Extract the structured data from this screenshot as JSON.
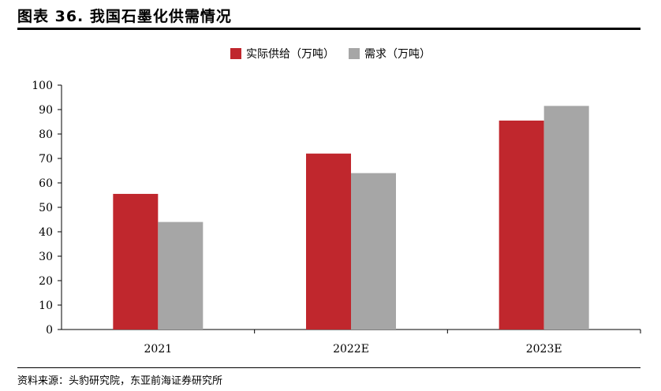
{
  "header": {
    "title": "图表 36. 我国石墨化供需情况"
  },
  "footer": {
    "source": "资料来源：头豹研究院，东亚前海证券研究所"
  },
  "colors": {
    "supply": "#C0272D",
    "demand": "#A6A6A6",
    "rule": "#000000"
  },
  "chart_data": {
    "type": "bar",
    "categories": [
      "2021",
      "2022E",
      "2023E"
    ],
    "series": [
      {
        "name": "实际供给（万吨）",
        "values": [
          55.5,
          72,
          85.5
        ]
      },
      {
        "name": "需求（万吨）",
        "values": [
          44,
          64,
          91.5
        ]
      }
    ],
    "ylim": [
      0,
      100
    ],
    "yticks": [
      0,
      10,
      20,
      30,
      40,
      50,
      60,
      70,
      80,
      90,
      100
    ],
    "grid": false,
    "legend_position": "top-center"
  }
}
